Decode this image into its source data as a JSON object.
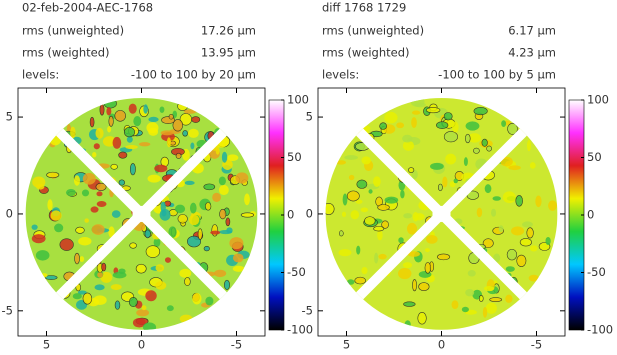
{
  "chart_data": [
    {
      "type": "map",
      "title": "02-feb-2004-AEC-1768",
      "stats": [
        {
          "label": "rms (unweighted)",
          "value": "17.26 μm"
        },
        {
          "label": "rms (weighted)",
          "value": "13.95 μm"
        },
        {
          "label": "levels:",
          "value": "-100 to 100 by 20 μm"
        }
      ],
      "xlim": [
        6.5,
        -6.5
      ],
      "xticks": [
        5,
        0,
        -5
      ],
      "ylim": [
        -6.3,
        6.5
      ],
      "yticks": [
        5,
        0,
        -5
      ],
      "colorbar": {
        "lim": [
          -100,
          100
        ],
        "ticks": [
          100,
          50,
          0,
          -50,
          -100
        ],
        "colors": [
          "#000000",
          "#0010c0",
          "#00c8ff",
          "#20d040",
          "#f0f000",
          "#e02020",
          "#ff30ff",
          "#ffffff"
        ]
      }
    },
    {
      "type": "map",
      "title": "diff 1768 1729",
      "stats": [
        {
          "label": "rms (unweighted)",
          "value": "6.17 μm"
        },
        {
          "label": "rms (weighted)",
          "value": "4.23 μm"
        },
        {
          "label": "levels:",
          "value": "-100 to 100 by 5 μm"
        }
      ],
      "xlim": [
        6.5,
        -6.5
      ],
      "xticks": [
        5,
        0,
        -5
      ],
      "ylim": [
        -6.3,
        6.5
      ],
      "yticks": [
        5,
        0,
        -5
      ],
      "colorbar": {
        "lim": [
          -100,
          100
        ],
        "ticks": [
          100,
          50,
          0,
          -50,
          -100
        ],
        "colors": [
          "#000000",
          "#0010c0",
          "#00c8ff",
          "#20d040",
          "#f0f000",
          "#e02020",
          "#ff30ff",
          "#ffffff"
        ]
      }
    }
  ]
}
